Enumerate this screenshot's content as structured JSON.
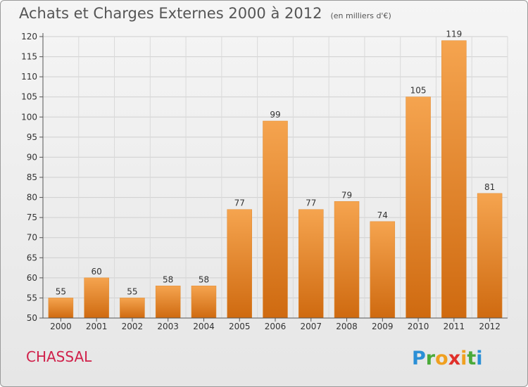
{
  "title": "Achats et Charges Externes 2000 à 2012",
  "subtitle": "(en milliers d'€)",
  "place": "CHASSAL",
  "logo_text": "Proxiti",
  "colors": {
    "bar_top": "#f5a44f",
    "bar_bottom": "#cf6a10",
    "place_text": "#d0204a"
  },
  "chart_data": {
    "type": "bar",
    "title": "Achats et Charges Externes 2000 à 2012",
    "subtitle": "(en milliers d'€)",
    "categories": [
      "2000",
      "2001",
      "2002",
      "2003",
      "2004",
      "2005",
      "2006",
      "2007",
      "2008",
      "2009",
      "2010",
      "2011",
      "2012"
    ],
    "values": [
      55,
      60,
      55,
      58,
      58,
      77,
      99,
      77,
      79,
      74,
      105,
      119,
      81
    ],
    "ylim": [
      50,
      120
    ],
    "yticks": [
      50,
      55,
      60,
      65,
      70,
      75,
      80,
      85,
      90,
      95,
      100,
      105,
      110,
      115,
      120
    ],
    "grid": true,
    "data_labels": true
  }
}
